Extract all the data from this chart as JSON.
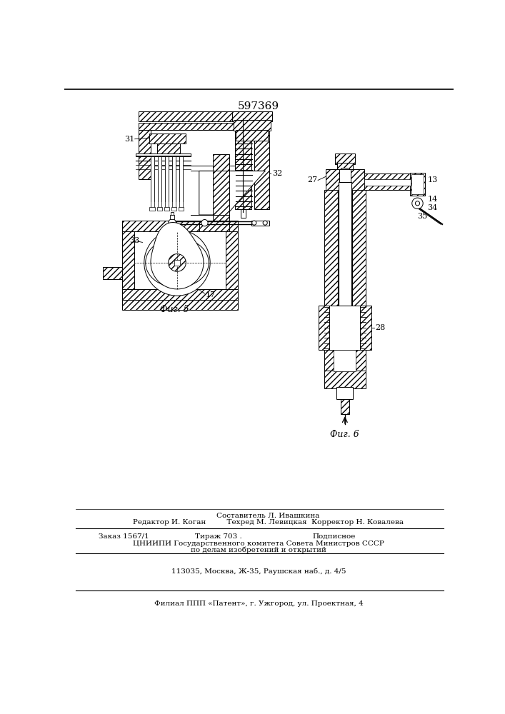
{
  "patent_number": "597369",
  "fig5_label": "Фиг. 5",
  "fig6_label": "Фиг. 6",
  "bg_color": "#ffffff",
  "line_color": "#000000",
  "bottom_line1": "Составитель Л. Ивашкина",
  "bottom_line2": "Редактор И. Коган         Техред М. Левицкая  Корректор Н. Ковалева",
  "bottom_line3a": "Заказ 1567/1",
  "bottom_line3b": "Тираж 703 .",
  "bottom_line3c": "Подписное",
  "bottom_line4": "ЦНИИПИ Государственного комитета Совета Министров СССР",
  "bottom_line5": "по делам изобретений и открытий",
  "bottom_line6": "113035, Москва, Ж-35, Раушская наб., д. 4/5",
  "bottom_line7": "Филиал ППП «Патент», г. Ужгород, ул. Проектная, 4",
  "label_31": "31",
  "label_32": "32",
  "label_33": "33",
  "label_17": "17",
  "label_27": "27",
  "label_13": "13",
  "label_14": "14",
  "label_34": "34",
  "label_35": "35",
  "label_28": "28"
}
